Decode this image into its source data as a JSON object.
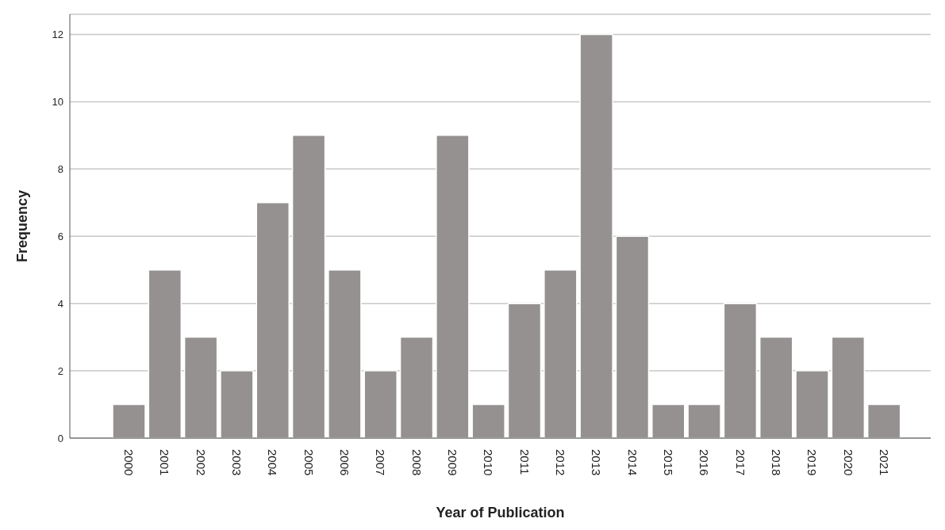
{
  "chart_data": {
    "type": "bar",
    "xlabel": "Year of Publication",
    "ylabel": "Frequency",
    "categories": [
      "2000",
      "2001",
      "2002",
      "2003",
      "2004",
      "2005",
      "2006",
      "2007",
      "2008",
      "2009",
      "2010",
      "2011",
      "2012",
      "2013",
      "2014",
      "2015",
      "2016",
      "2017",
      "2018",
      "2019",
      "2020",
      "2021"
    ],
    "values": [
      1,
      5,
      3,
      2,
      7,
      9,
      5,
      2,
      3,
      9,
      1,
      4,
      5,
      12,
      6,
      1,
      1,
      4,
      3,
      2,
      3,
      1
    ],
    "color": "#959190",
    "ylim": [
      0,
      12.6
    ],
    "yticks": [
      0,
      2,
      4,
      6,
      8,
      10,
      12
    ],
    "grid": "y"
  }
}
